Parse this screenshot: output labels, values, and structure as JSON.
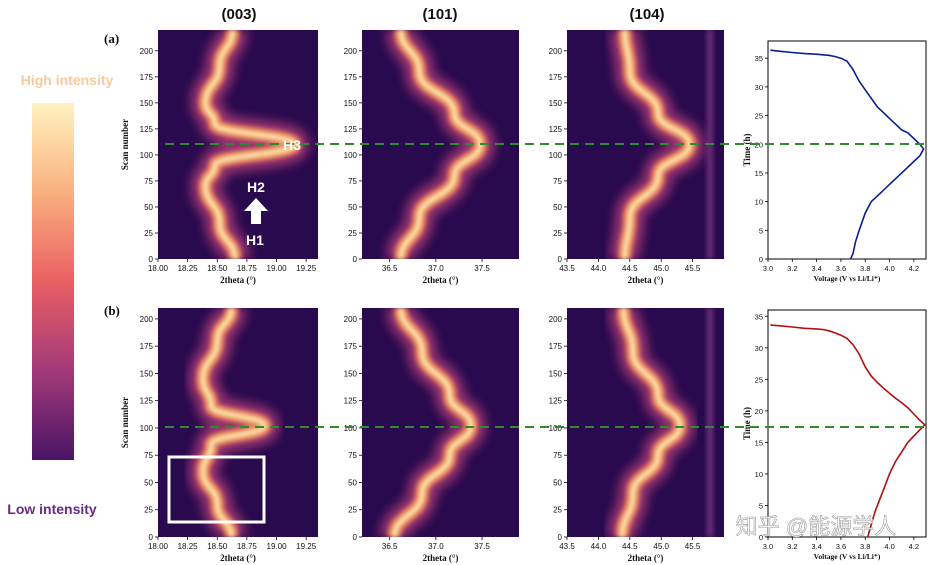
{
  "figure": {
    "colorbar": {
      "high_label": "High intensity",
      "low_label": "Low intensity",
      "high_color": "#f8c9a0",
      "low_color": "#6a2a83"
    },
    "column_titles": [
      "(003)",
      "(101)",
      "(104)"
    ],
    "row_labels": [
      "(a)",
      "(b)"
    ],
    "heatmap_ylabel": "Scan number",
    "heatmap_xlabel": "2theta (°)",
    "time_ylabel": "Time (h)",
    "time_xlabel": "Voltage (V vs Li/Li⁺)",
    "annotations": {
      "h1": "H1",
      "h2": "H2",
      "h3": "H3"
    },
    "guide_line_color": "#2e8b2e",
    "watermark": "知乎 @能源学人"
  },
  "chart_data": [
    {
      "type": "heatmap",
      "id": "a-003",
      "title": "(003)",
      "xlabel": "2theta (°)",
      "ylabel": "Scan number",
      "xlim": [
        18.0,
        19.35
      ],
      "ylim": [
        0,
        220
      ],
      "xticks": [
        18.0,
        18.25,
        18.5,
        18.75,
        19.0,
        19.25
      ],
      "yticks": [
        0,
        25,
        50,
        75,
        100,
        125,
        150,
        175,
        200
      ],
      "peak_track": [
        [
          0,
          18.65
        ],
        [
          35,
          18.52
        ],
        [
          70,
          18.4
        ],
        [
          90,
          18.48
        ],
        [
          110,
          19.15
        ],
        [
          130,
          18.48
        ],
        [
          150,
          18.4
        ],
        [
          185,
          18.52
        ],
        [
          220,
          18.63
        ]
      ],
      "annotations": [
        "H1",
        "H2",
        "H3"
      ]
    },
    {
      "type": "heatmap",
      "id": "a-101",
      "title": "(101)",
      "xlabel": "2theta (°)",
      "ylabel": "",
      "xlim": [
        36.2,
        37.9
      ],
      "ylim": [
        0,
        220
      ],
      "xticks": [
        36.5,
        37.0,
        37.5
      ],
      "yticks": [
        0,
        25,
        50,
        75,
        100,
        125,
        150,
        175,
        200
      ],
      "peak_track": [
        [
          0,
          36.62
        ],
        [
          40,
          36.82
        ],
        [
          80,
          37.2
        ],
        [
          110,
          37.48
        ],
        [
          140,
          37.2
        ],
        [
          180,
          36.82
        ],
        [
          220,
          36.62
        ]
      ]
    },
    {
      "type": "heatmap",
      "id": "a-104",
      "title": "(104)",
      "xlabel": "2theta (°)",
      "ylabel": "",
      "xlim": [
        43.5,
        46.0
      ],
      "ylim": [
        0,
        220
      ],
      "xticks": [
        43.5,
        44.0,
        44.5,
        45.0,
        45.5
      ],
      "yticks": [
        0,
        25,
        50,
        75,
        100,
        125,
        150,
        175,
        200
      ],
      "peak_track": [
        [
          0,
          44.42
        ],
        [
          40,
          44.5
        ],
        [
          80,
          44.95
        ],
        [
          110,
          45.45
        ],
        [
          140,
          44.95
        ],
        [
          180,
          44.5
        ],
        [
          220,
          44.42
        ]
      ]
    },
    {
      "type": "line",
      "id": "a-time",
      "xlabel": "Voltage (V vs Li/Li⁺)",
      "ylabel": "Time (h)",
      "xlim": [
        3.0,
        4.3
      ],
      "ylim": [
        0,
        38
      ],
      "xticks": [
        3.0,
        3.2,
        3.4,
        3.6,
        3.8,
        4.0,
        4.2
      ],
      "yticks": [
        0,
        5,
        10,
        15,
        20,
        25,
        30,
        35
      ],
      "color": "#0a1f8f",
      "x": [
        3.68,
        3.7,
        3.72,
        3.75,
        3.8,
        3.85,
        3.9,
        3.95,
        4.0,
        4.05,
        4.1,
        4.15,
        4.2,
        4.25,
        4.28,
        4.25,
        4.2,
        4.15,
        4.1,
        4.05,
        4.0,
        3.95,
        3.9,
        3.85,
        3.8,
        3.75,
        3.7,
        3.65,
        3.6,
        3.55,
        3.5,
        3.45,
        3.4,
        3.3,
        3.2,
        3.1,
        3.02
      ],
      "y": [
        0,
        1,
        3,
        5,
        8,
        10,
        11,
        12,
        13,
        14,
        15,
        16,
        17,
        18,
        19.2,
        20,
        21,
        22,
        22.5,
        23.5,
        24.5,
        25.5,
        26.5,
        28,
        29.5,
        31,
        33,
        34.5,
        35,
        35.3,
        35.5,
        35.6,
        35.7,
        35.8,
        36,
        36.2,
        36.4
      ]
    },
    {
      "type": "heatmap",
      "id": "b-003",
      "title": "",
      "xlabel": "2theta (°)",
      "ylabel": "Scan number",
      "xlim": [
        18.0,
        19.35
      ],
      "ylim": [
        0,
        210
      ],
      "xticks": [
        18.0,
        18.25,
        18.5,
        18.75,
        19.0,
        19.25
      ],
      "yticks": [
        0,
        25,
        50,
        75,
        100,
        125,
        150,
        175,
        200
      ],
      "peak_track": [
        [
          0,
          18.62
        ],
        [
          30,
          18.5
        ],
        [
          60,
          18.38
        ],
        [
          85,
          18.45
        ],
        [
          102,
          18.9
        ],
        [
          120,
          18.45
        ],
        [
          145,
          18.38
        ],
        [
          180,
          18.5
        ],
        [
          210,
          18.62
        ]
      ]
    },
    {
      "type": "heatmap",
      "id": "b-101",
      "title": "",
      "xlabel": "2theta (°)",
      "ylabel": "",
      "xlim": [
        36.2,
        37.9
      ],
      "ylim": [
        0,
        210
      ],
      "xticks": [
        36.5,
        37.0,
        37.5
      ],
      "yticks": [
        0,
        25,
        50,
        75,
        100,
        125,
        150,
        175,
        200
      ],
      "peak_track": [
        [
          0,
          36.55
        ],
        [
          40,
          36.85
        ],
        [
          75,
          37.15
        ],
        [
          102,
          37.38
        ],
        [
          130,
          37.15
        ],
        [
          170,
          36.85
        ],
        [
          210,
          36.62
        ]
      ]
    },
    {
      "type": "heatmap",
      "id": "b-104",
      "title": "",
      "xlabel": "2theta (°)",
      "ylabel": "",
      "xlim": [
        43.5,
        46.0
      ],
      "ylim": [
        0,
        210
      ],
      "xticks": [
        43.5,
        44.0,
        44.5,
        45.0,
        45.5
      ],
      "yticks": [
        0,
        25,
        50,
        75,
        100,
        125,
        150,
        175,
        200
      ],
      "peak_track": [
        [
          0,
          44.38
        ],
        [
          40,
          44.55
        ],
        [
          75,
          44.95
        ],
        [
          102,
          45.3
        ],
        [
          130,
          44.95
        ],
        [
          170,
          44.55
        ],
        [
          210,
          44.4
        ]
      ]
    },
    {
      "type": "line",
      "id": "b-time",
      "xlabel": "Voltage (V vs Li/Li⁺)",
      "ylabel": "Time (h)",
      "xlim": [
        3.0,
        4.3
      ],
      "ylim": [
        0,
        36
      ],
      "xticks": [
        3.0,
        3.2,
        3.4,
        3.6,
        3.8,
        4.0,
        4.2
      ],
      "yticks": [
        0,
        5,
        10,
        15,
        20,
        25,
        30,
        35
      ],
      "color": "#b01010",
      "x": [
        3.82,
        3.85,
        3.88,
        3.92,
        3.96,
        4.0,
        4.05,
        4.1,
        4.15,
        4.2,
        4.25,
        4.29,
        4.25,
        4.2,
        4.15,
        4.1,
        4.05,
        4.0,
        3.95,
        3.9,
        3.85,
        3.8,
        3.75,
        3.7,
        3.65,
        3.6,
        3.55,
        3.5,
        3.45,
        3.4,
        3.3,
        3.2,
        3.1,
        3.02
      ],
      "y": [
        0,
        2,
        4,
        6,
        8,
        10,
        12,
        13.5,
        15,
        16,
        17,
        17.8,
        18.5,
        19.5,
        20.5,
        21.3,
        22,
        22.8,
        23.6,
        24.5,
        25.5,
        27,
        29,
        30.5,
        31.5,
        32,
        32.4,
        32.7,
        32.9,
        33,
        33.1,
        33.3,
        33.5,
        33.6
      ]
    }
  ]
}
